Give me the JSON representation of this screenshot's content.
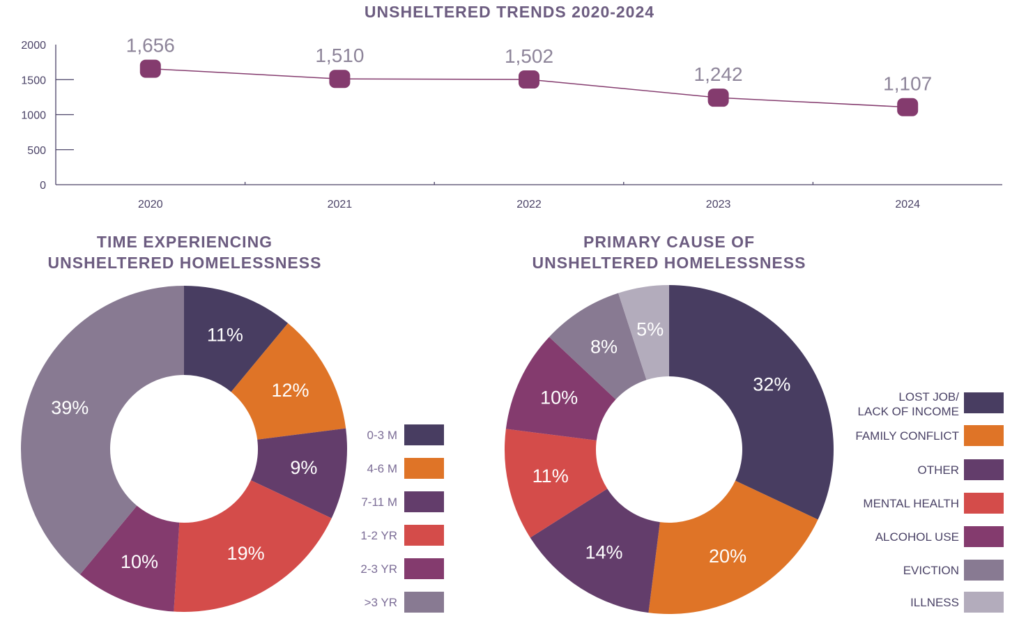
{
  "colors": {
    "dark": "#483D61",
    "orange": "#DF7427",
    "purple": "#633D6B",
    "red": "#D44C4A",
    "plum": "#843B6E",
    "gray": "#887A92",
    "light": "#B3ACBC",
    "axis": "#4a4266",
    "label": "#8d8499"
  },
  "chart_data": [
    {
      "type": "line",
      "title": "UNSHELTERED TRENDS 2020-2024",
      "categories": [
        "2020",
        "2021",
        "2022",
        "2023",
        "2024"
      ],
      "values": [
        1656,
        1510,
        1502,
        1242,
        1107
      ],
      "data_labels": [
        "1,656",
        "1,510",
        "1,502",
        "1,242",
        "1,107"
      ],
      "yticks": [
        "0",
        "500",
        "1000",
        "1500",
        "2000"
      ],
      "ylim": [
        0,
        2000
      ],
      "xlabel": "",
      "ylabel": ""
    },
    {
      "type": "pie",
      "title": [
        "TIME EXPERIENCING",
        "UNSHELTERED HOMELESSNESS"
      ],
      "labels": [
        "0-3 M",
        "4-6 M",
        "7-11 M",
        "1-2 YR",
        "2-3 YR",
        ">3 YR"
      ],
      "values": [
        11,
        12,
        9,
        19,
        10,
        39
      ],
      "data_labels": [
        "11%",
        "12%",
        "9%",
        "19%",
        "10%",
        "39%"
      ],
      "colors": [
        "#483D61",
        "#DF7427",
        "#633D6B",
        "#D44C4A",
        "#843B6E",
        "#887A92"
      ],
      "legend": "right"
    },
    {
      "type": "pie",
      "title": [
        "PRIMARY CAUSE OF",
        "UNSHELTERED HOMELESSNESS"
      ],
      "labels": [
        "LOST JOB/ LACK OF INCOME",
        "FAMILY CONFLICT",
        "OTHER",
        "MENTAL HEALTH",
        "ALCOHOL USE",
        "EVICTION",
        "ILLNESS"
      ],
      "values": [
        32,
        20,
        14,
        11,
        10,
        8,
        5
      ],
      "data_labels": [
        "32%",
        "20%",
        "14%",
        "11%",
        "10%",
        "8%",
        "5%"
      ],
      "colors": [
        "#483D61",
        "#DF7427",
        "#633D6B",
        "#D44C4A",
        "#843B6E",
        "#887A92",
        "#B3ACBC"
      ],
      "legend": "right"
    }
  ]
}
